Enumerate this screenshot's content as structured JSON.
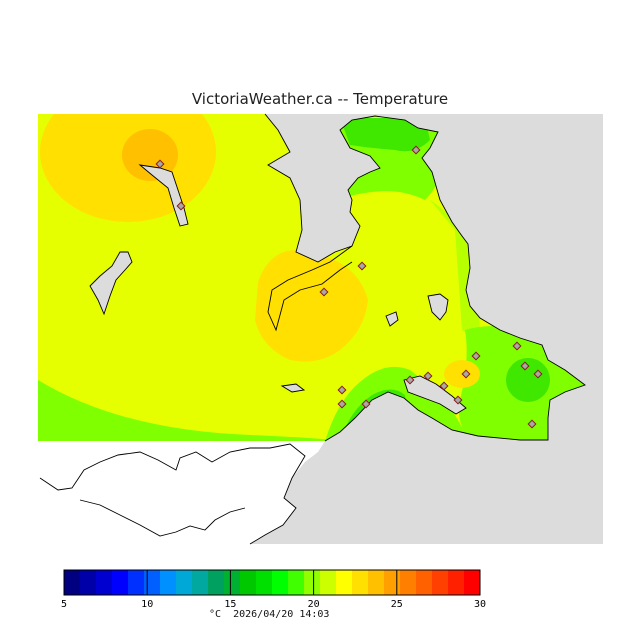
{
  "header": {
    "title": "VictoriaWeather.ca -- Temperature"
  },
  "footer": {
    "unit": "°C",
    "timestamp": "2026/04/20 14:03"
  },
  "colorbar": {
    "min": 5,
    "max": 30,
    "tick_labels": [
      "5",
      "10",
      "15",
      "20",
      "25",
      "30"
    ],
    "colors": [
      "#000080",
      "#0000a8",
      "#0000d0",
      "#0000ff",
      "#0030ff",
      "#0060ff",
      "#0090ff",
      "#00a8d8",
      "#00a8a0",
      "#00a060",
      "#00b030",
      "#00c800",
      "#00e000",
      "#00ff00",
      "#40ff00",
      "#90ff00",
      "#ccff00",
      "#ffff00",
      "#ffe000",
      "#ffc000",
      "#ffa000",
      "#ff8000",
      "#ff6000",
      "#ff4000",
      "#ff2000",
      "#ff0000"
    ]
  },
  "map": {
    "sea_color": "#dcdcdc",
    "no_data_color": "#ffffff",
    "stations": [
      {
        "id": "s1"
      },
      {
        "id": "s2"
      },
      {
        "id": "s3"
      },
      {
        "id": "s4"
      },
      {
        "id": "s5"
      },
      {
        "id": "s6"
      },
      {
        "id": "s7"
      },
      {
        "id": "s8"
      },
      {
        "id": "s9"
      },
      {
        "id": "s10"
      },
      {
        "id": "s11"
      },
      {
        "id": "s12"
      },
      {
        "id": "s13"
      },
      {
        "id": "s14"
      },
      {
        "id": "s15"
      },
      {
        "id": "s16"
      },
      {
        "id": "s17"
      },
      {
        "id": "s18"
      }
    ]
  }
}
